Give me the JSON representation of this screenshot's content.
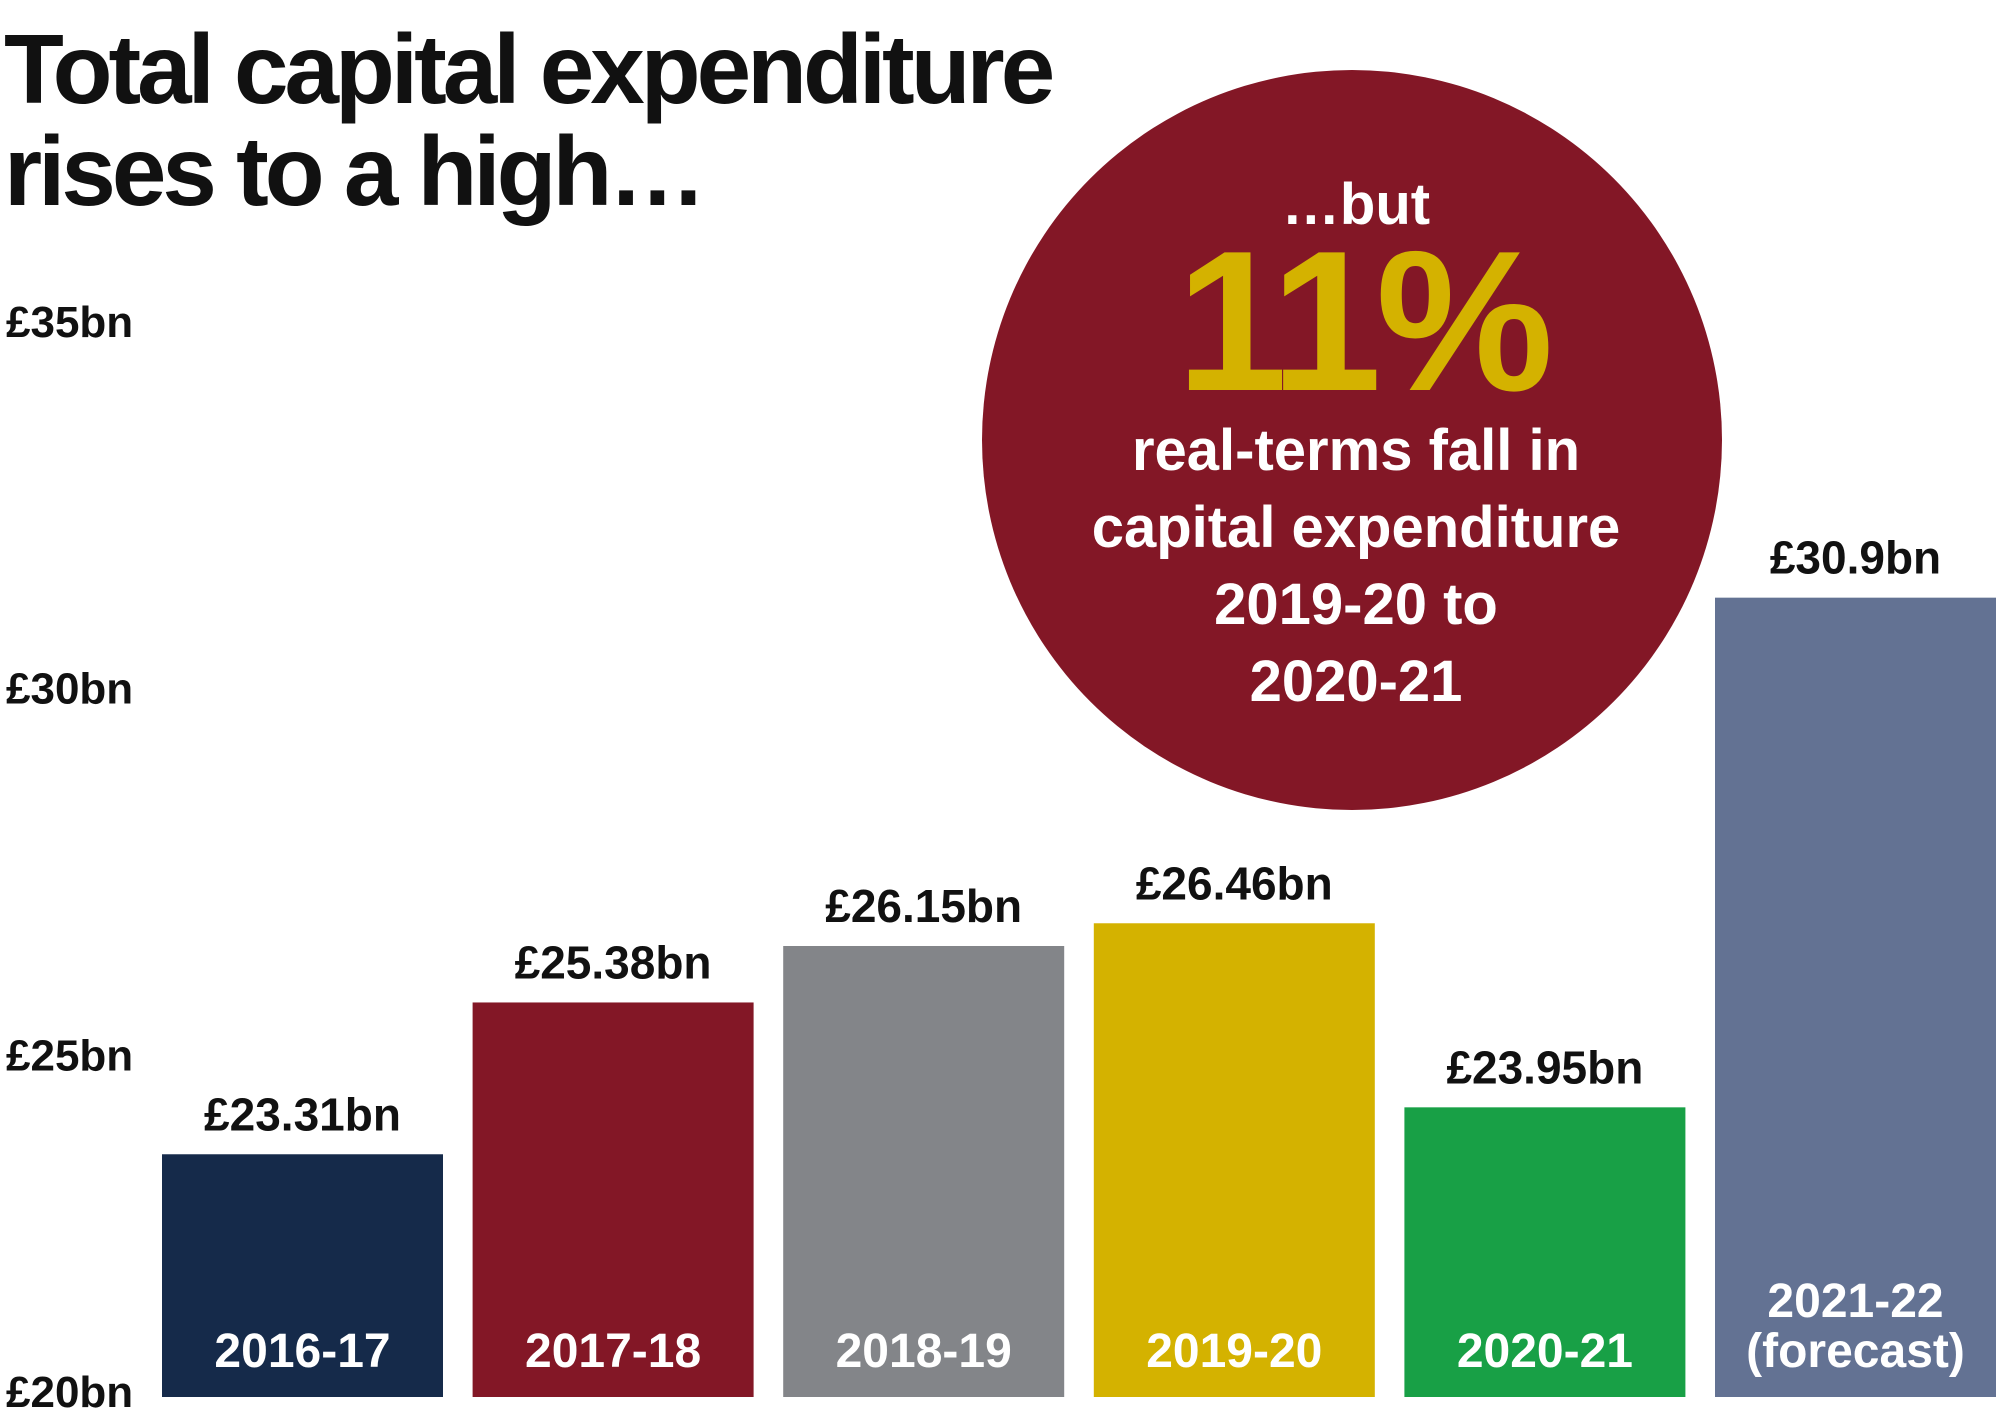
{
  "chart_data": {
    "type": "bar",
    "title": "Total capital expenditure rises to a high…",
    "categories": [
      "2016-17",
      "2017-18",
      "2018-19",
      "2019-20",
      "2020-21",
      "2021-22 (forecast)"
    ],
    "values": [
      23.31,
      25.38,
      26.15,
      26.46,
      23.95,
      30.9
    ],
    "value_labels": [
      "£23.31bn",
      "£25.38bn",
      "£26.15bn",
      "£26.46bn",
      "£23.95bn",
      "£30.9bn"
    ],
    "colors": [
      "#152a4a",
      "#831726",
      "#838589",
      "#d4b200",
      "#18a046",
      "#637293"
    ],
    "ylim": [
      20,
      35
    ],
    "yticks": [
      {
        "value": 20,
        "label": "£20bn"
      },
      {
        "value": 25,
        "label": "£25bn"
      },
      {
        "value": 30,
        "label": "£30bn"
      },
      {
        "value": 35,
        "label": "£35bn"
      }
    ],
    "annotation": {
      "intro": "…but",
      "highlight": "11%",
      "lines": [
        "real-terms fall in",
        "capital expenditure",
        "2019-20 to",
        "2020-21"
      ],
      "color": "#831726",
      "highlight_color": "#d4b200"
    }
  }
}
